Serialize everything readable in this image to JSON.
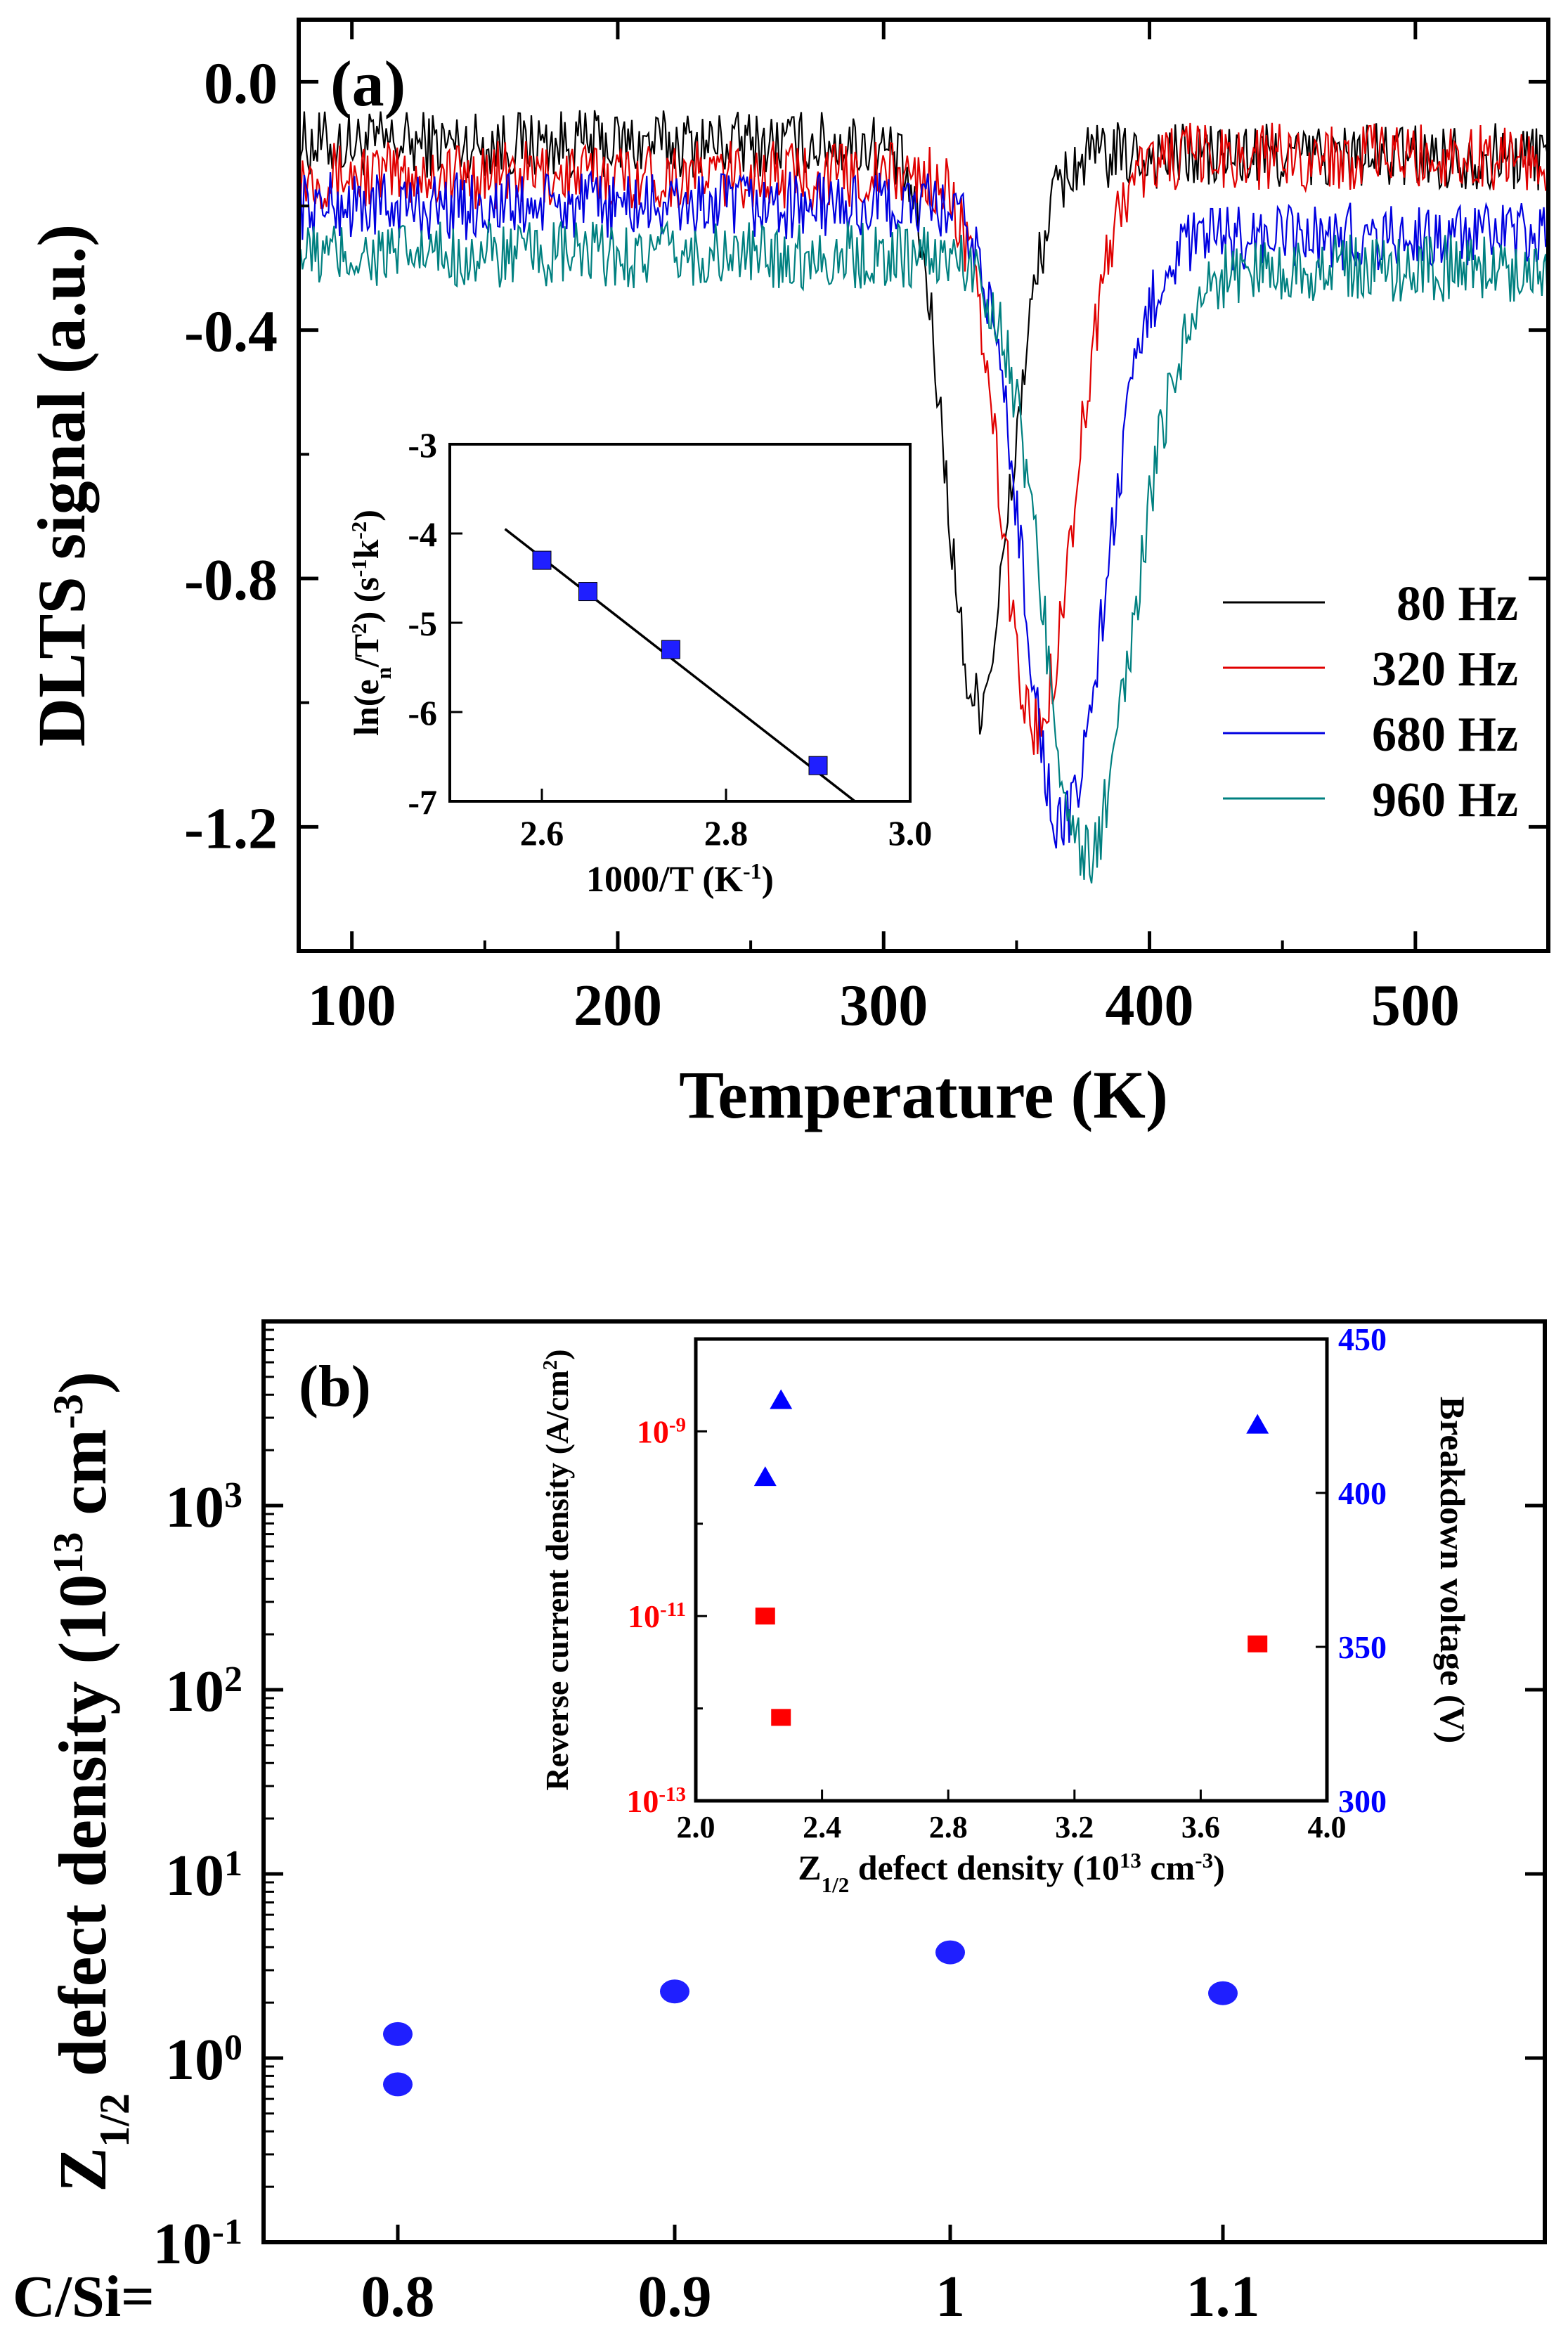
{
  "chart_data": [
    {
      "panel": "(a)",
      "type": "line",
      "xlabel": "Temperature (K)",
      "ylabel": "DLTS signal (a.u.)",
      "xlim": [
        80,
        550
      ],
      "ylim": [
        -1.4,
        0.1
      ],
      "xticks": [
        100,
        200,
        300,
        400,
        500
      ],
      "xtick_labels": [
        "100",
        "200",
        "300",
        "400",
        "500"
      ],
      "yticks": [
        0.0,
        -0.4,
        -0.8,
        -1.2
      ],
      "ytick_labels": [
        "0.0",
        "-0.4",
        "-0.8",
        "-1.2"
      ],
      "legend_position": "right",
      "series": [
        {
          "name": "80 Hz",
          "color": "#000000",
          "baseline_low": -0.1,
          "baseline_high": -0.12,
          "peak_T": 335,
          "peak_value": -1.0,
          "width": 16
        },
        {
          "name": "320 Hz",
          "color": "#e00000",
          "baseline_low": -0.15,
          "baseline_high": -0.12,
          "peak_T": 357,
          "peak_value": -1.04,
          "width": 18
        },
        {
          "name": "680 Hz",
          "color": "#0000e0",
          "baseline_low": -0.2,
          "baseline_high": -0.25,
          "peak_T": 367,
          "peak_value": -1.2,
          "width": 20
        },
        {
          "name": "960 Hz",
          "color": "#008080",
          "baseline_low": -0.28,
          "baseline_high": -0.3,
          "peak_T": 376,
          "peak_value": -1.25,
          "width": 22
        }
      ],
      "inset": {
        "type": "scatter",
        "xlabel_main": "1000/T (K",
        "xlabel_sup": "-1",
        "xlabel_tail": ")",
        "ylabel_parts": [
          "ln(e",
          "n",
          "/T",
          "2",
          ") (s",
          "-1",
          "k",
          "-2",
          ")"
        ],
        "xlim": [
          2.5,
          3.0
        ],
        "ylim": [
          -7,
          -3
        ],
        "xticks": [
          2.6,
          2.8,
          3.0
        ],
        "xtick_labels": [
          "2.6",
          "2.8",
          "3.0"
        ],
        "yticks": [
          -3,
          -4,
          -5,
          -6,
          -7
        ],
        "ytick_labels": [
          "-3",
          "-4",
          "-5",
          "-6",
          "-7"
        ],
        "points": [
          [
            2.6,
            -4.3
          ],
          [
            2.65,
            -4.65
          ],
          [
            2.74,
            -5.3
          ],
          [
            2.9,
            -6.6
          ]
        ],
        "fit": [
          [
            2.56,
            -3.95
          ],
          [
            2.94,
            -7.0
          ]
        ],
        "marker_color": "#1f1fff"
      }
    },
    {
      "panel": "(b)",
      "type": "scatter",
      "ylabel_parts": [
        "Z",
        "1/2",
        " defect density (10",
        "13",
        " cm",
        "-3",
        ")"
      ],
      "xlabel": "C/Si=",
      "yscale": "log",
      "ylim_exp": [
        -1,
        4
      ],
      "ytick_exponents": [
        -1,
        0,
        1,
        2,
        3
      ],
      "ytick_base": "10",
      "categories": [
        "0.8",
        "0.9",
        "1",
        "1.1"
      ],
      "values": [
        [
          1.35,
          0.72
        ],
        [
          2.3
        ],
        [
          3.75
        ],
        [
          2.25
        ]
      ],
      "marker_color": "#1f1fff",
      "inset": {
        "xlabel_parts": [
          "Z",
          "1/2",
          " defect density (10",
          "13",
          " cm",
          "-3",
          ")"
        ],
        "ylabel_left_parts": [
          "Reverse current density (A/cm",
          "2",
          ")"
        ],
        "ylabel_right": "Breakdown voltage (V)",
        "xlim": [
          2.0,
          4.0
        ],
        "xticks": [
          2.0,
          2.4,
          2.8,
          3.2,
          3.6,
          4.0
        ],
        "xtick_labels": [
          "2.0",
          "2.4",
          "2.8",
          "3.2",
          "3.6",
          "4.0"
        ],
        "left_yscale": "log",
        "left_ylim_exp": [
          -13,
          -8
        ],
        "left_ytick_exponents": [
          -9,
          -11,
          -13
        ],
        "left_color": "#ff0000",
        "right_ylim": [
          300,
          450
        ],
        "right_yticks": [
          300,
          350,
          400,
          450
        ],
        "right_tick_labels": [
          "300",
          "350",
          "400",
          "450"
        ],
        "right_color": "#0000ff",
        "reverse_current": [
          [
            2.22,
            1e-11
          ],
          [
            2.27,
            8e-13
          ],
          [
            3.78,
            5e-12
          ]
        ],
        "breakdown_voltage": [
          [
            2.22,
            405
          ],
          [
            2.27,
            430
          ],
          [
            3.78,
            422
          ]
        ]
      }
    }
  ]
}
